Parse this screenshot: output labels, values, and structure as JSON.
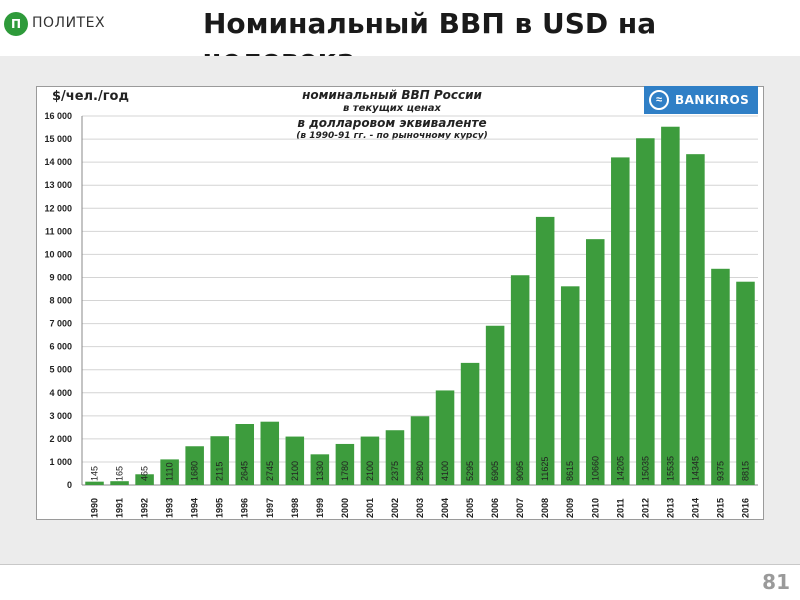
{
  "header": {
    "logo_text": "ПОЛИТЕХ",
    "logo_mark": "П",
    "title": "Номинальный ВВП в USD на человека"
  },
  "footer": {
    "page_number": "81"
  },
  "brand": {
    "name": "BANKIROS",
    "icon": "wave-logo-icon"
  },
  "colors": {
    "bar": "#3d9c3d",
    "title": "#1a1a1a",
    "brand_badge": "#2f7fc6"
  },
  "chart_data": {
    "type": "bar",
    "unit_label": "$/чел./год",
    "title_lines": [
      "номинальный ВВП России",
      "в текущих ценах",
      "в долларовом эквиваленте",
      "(в 1990-91 гг. - по рыночному курсу)"
    ],
    "categories": [
      "1990",
      "1991",
      "1992",
      "1993",
      "1994",
      "1995",
      "1996",
      "1997",
      "1998",
      "1999",
      "2000",
      "2001",
      "2002",
      "2003",
      "2004",
      "2005",
      "2006",
      "2007",
      "2008",
      "2009",
      "2010",
      "2011",
      "2012",
      "2013",
      "2014",
      "2015",
      "2016"
    ],
    "values": [
      145,
      165,
      465,
      1110,
      1680,
      2115,
      2645,
      2745,
      2100,
      1330,
      1780,
      2100,
      2375,
      2980,
      4100,
      5295,
      6905,
      9095,
      11625,
      8615,
      10660,
      14205,
      15035,
      15535,
      14345,
      9375,
      8815
    ],
    "ylim": [
      0,
      16000
    ],
    "y_ticks": [
      0,
      1000,
      2000,
      3000,
      4000,
      5000,
      6000,
      7000,
      8000,
      9000,
      10000,
      11000,
      12000,
      13000,
      14000,
      15000,
      16000
    ],
    "y_tick_labels": [
      "0",
      "1 000",
      "2 000",
      "3 000",
      "4 000",
      "5 000",
      "6 000",
      "7 000",
      "8 000",
      "9 000",
      "10 000",
      "11 000",
      "12 000",
      "13 000",
      "14 000",
      "15 000",
      "16 000"
    ],
    "grid": true,
    "data_labels": "inside-bar-vertical"
  }
}
